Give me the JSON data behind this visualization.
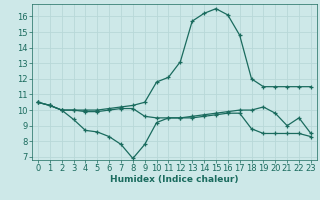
{
  "xlabel": "Humidex (Indice chaleur)",
  "bg_color": "#cde8e8",
  "grid_color": "#b8d8d8",
  "line_color": "#1a6b5e",
  "xlim": [
    -0.5,
    23.5
  ],
  "ylim": [
    6.8,
    16.8
  ],
  "yticks": [
    7,
    8,
    9,
    10,
    11,
    12,
    13,
    14,
    15,
    16
  ],
  "xticks": [
    0,
    1,
    2,
    3,
    4,
    5,
    6,
    7,
    8,
    9,
    10,
    11,
    12,
    13,
    14,
    15,
    16,
    17,
    18,
    19,
    20,
    21,
    22,
    23
  ],
  "series": [
    [
      10.5,
      10.3,
      10.0,
      10.0,
      10.0,
      10.0,
      10.1,
      10.2,
      10.3,
      10.5,
      11.8,
      12.1,
      13.1,
      15.7,
      16.2,
      16.5,
      16.1,
      14.8,
      12.0,
      11.5,
      11.5,
      11.5,
      11.5,
      11.5
    ],
    [
      10.5,
      10.3,
      10.0,
      10.0,
      9.9,
      9.9,
      10.0,
      10.1,
      10.1,
      9.6,
      9.5,
      9.5,
      9.5,
      9.6,
      9.7,
      9.8,
      9.9,
      10.0,
      10.0,
      10.2,
      9.8,
      9.0,
      9.5,
      8.5
    ],
    [
      10.5,
      10.3,
      10.0,
      9.4,
      8.7,
      8.6,
      8.3,
      7.8,
      6.9,
      7.8,
      9.2,
      9.5,
      9.5,
      9.5,
      9.6,
      9.7,
      9.8,
      9.8,
      8.8,
      8.5,
      8.5,
      8.5,
      8.5,
      8.3
    ]
  ],
  "xlabel_fontsize": 6.5,
  "tick_fontsize": 6.0,
  "linewidth": 0.9,
  "markersize": 3.0
}
